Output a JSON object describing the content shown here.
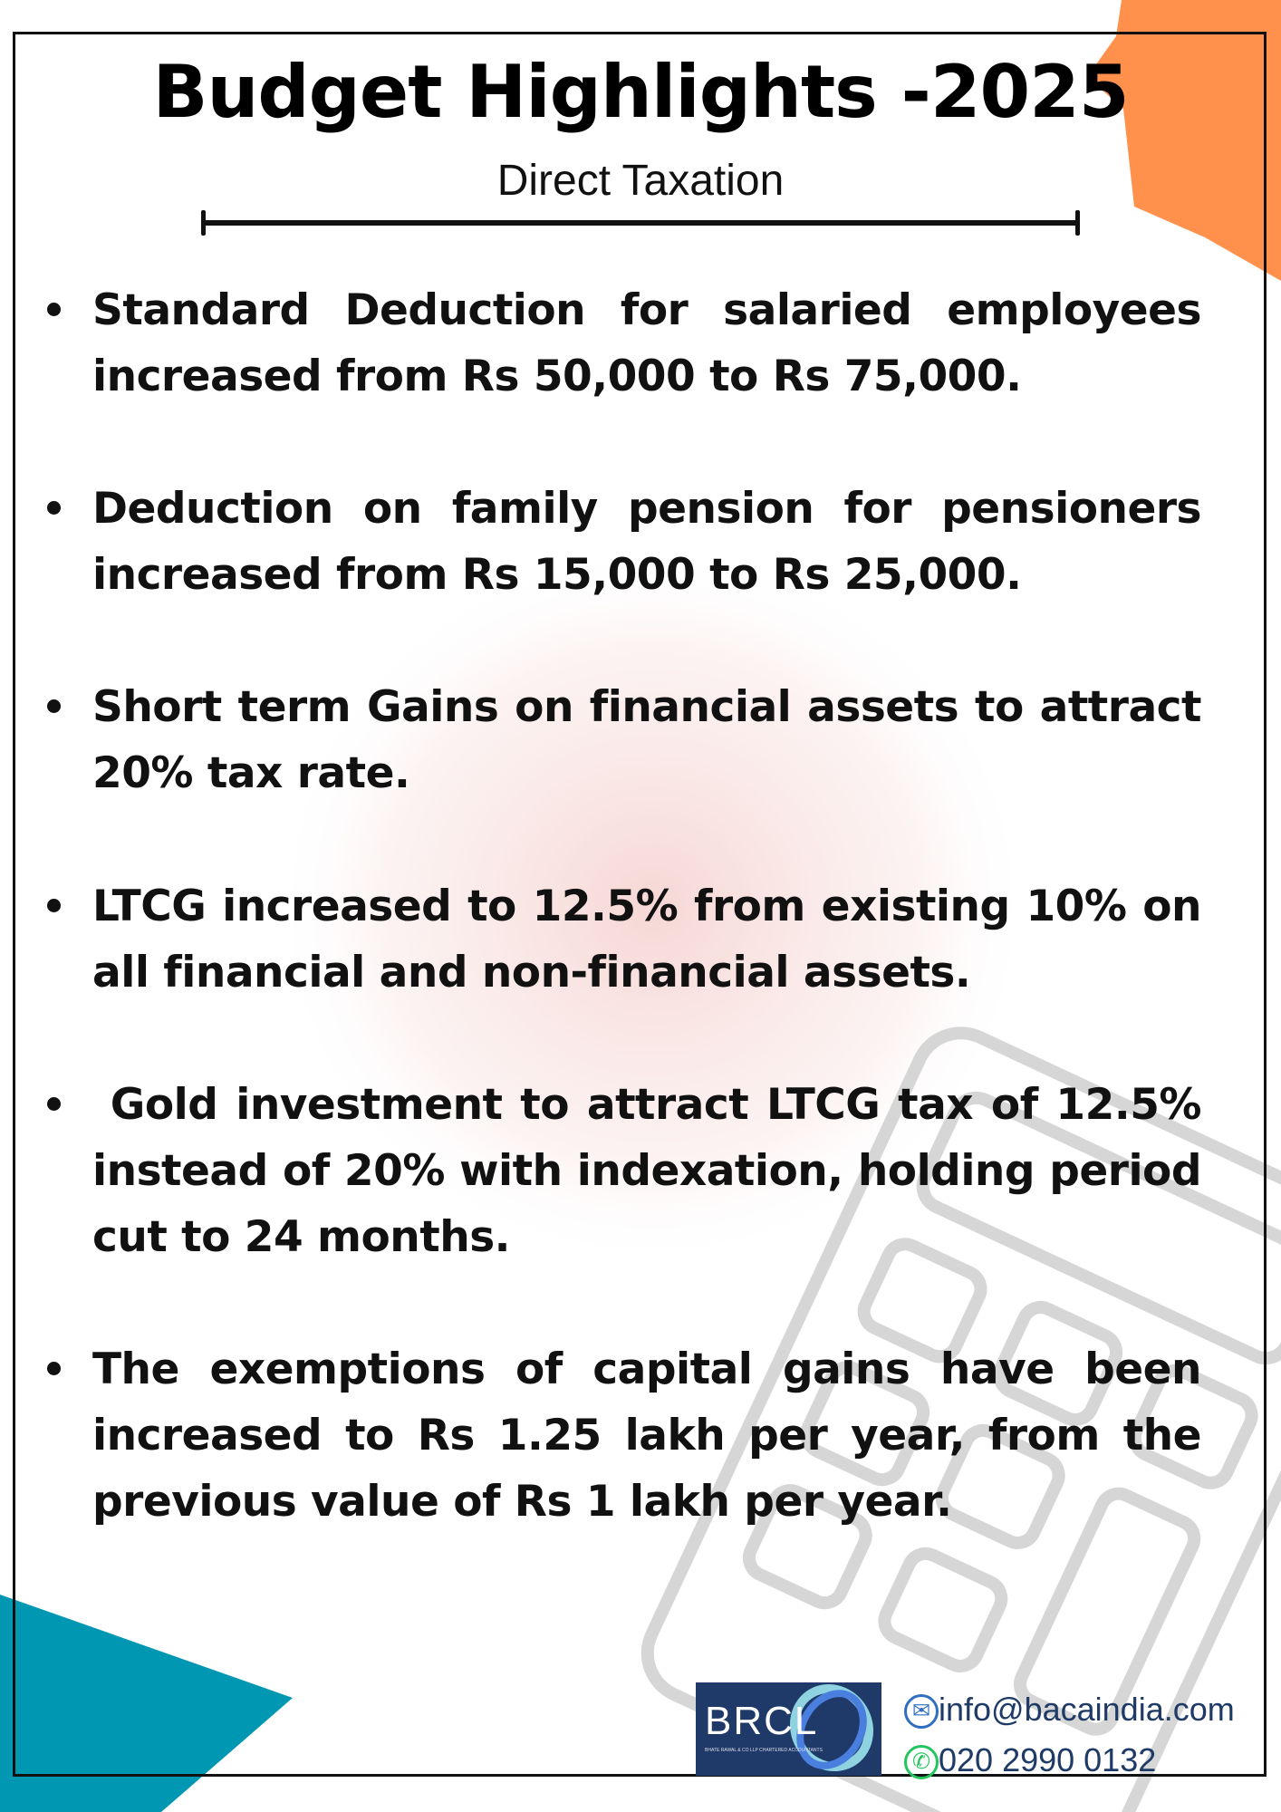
{
  "header": {
    "title": "Budget Highlights -2025",
    "subtitle": "Direct Taxation"
  },
  "items": [
    {
      "text": "Standard Deduction for salaried employees increased from Rs 50,000 to Rs 75,000."
    },
    {
      "text": "Deduction on family pension for pensioners increased from Rs 15,000 to Rs 25,000."
    },
    {
      "text": "Short term Gains on financial assets to attract 20% tax rate."
    },
    {
      "text": "LTCG increased to 12.5% from existing 10% on all financial and non-financial assets."
    },
    {
      "text": " Gold investment to attract LTCG tax of 12.5% instead of 20% with indexation, holding period cut to 24 months."
    },
    {
      "text": "The exemptions of capital gains have been increased to Rs 1.25 lakh per year, from the previous value of  Rs 1 lakh per year."
    }
  ],
  "footer": {
    "logo_text": "BRCL",
    "logo_tagline": "BHATE RAWAL & CO LLP CHARTERED ACCOUNTANTS",
    "email": "info@bacaindia.com",
    "phone": "020 2990 0132",
    "email_icon": "envelope-icon",
    "phone_icon": "phone-icon"
  },
  "colors": {
    "orange": "#ff914d",
    "teal": "#0097b2",
    "logo_bg": "#1f3a68"
  }
}
